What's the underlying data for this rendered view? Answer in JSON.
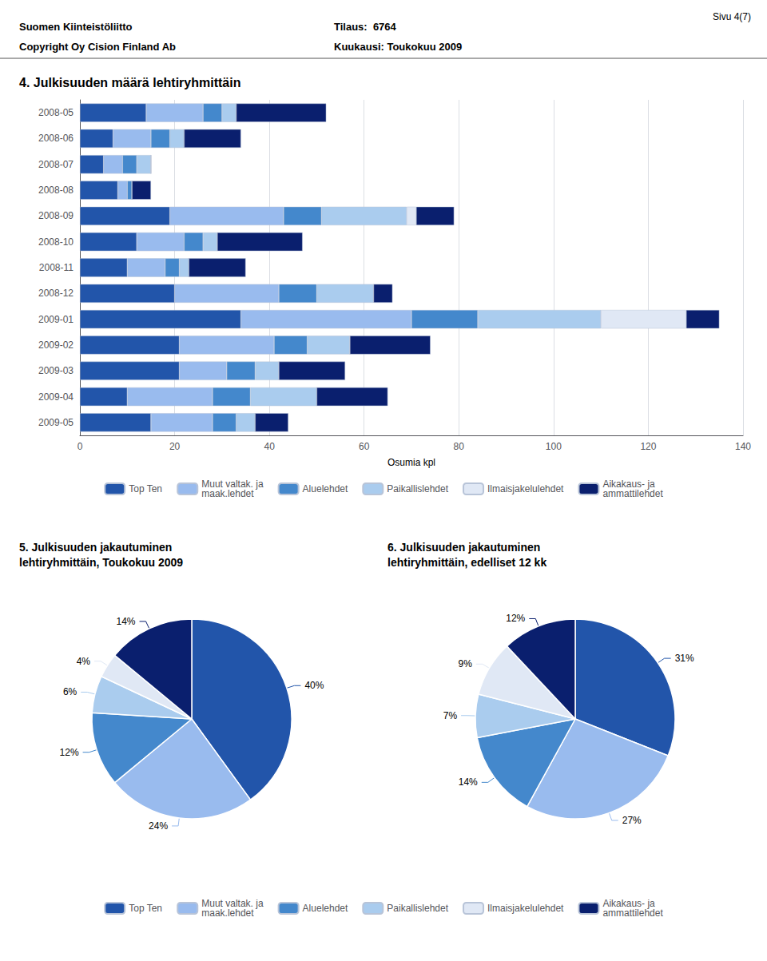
{
  "chart_data": [
    {
      "type": "bar",
      "title": "4. Julkisuuden määrä lehtiryhmittäin",
      "annotations": [
        "Suomen Kiinteistöliitto",
        "Copyright Oy Cision Finland Ab",
        "Tilaus:  6764",
        "Kuukausi: Toukokuu 2009",
        "Sivu 4(7)"
      ],
      "orientation": "horizontal",
      "stacked": true,
      "grid": true,
      "legend": "bottom",
      "categories": [
        "2008-05",
        "2008-06",
        "2008-07",
        "2008-08",
        "2008-09",
        "2008-10",
        "2008-11",
        "2008-12",
        "2009-01",
        "2009-02",
        "2009-03",
        "2009-04",
        "2009-05"
      ],
      "series": [
        {
          "name": "Top Ten",
          "color": "#2255aa",
          "values": [
            14,
            7,
            5,
            8,
            19,
            12,
            10,
            20,
            34,
            21,
            21,
            10,
            15
          ]
        },
        {
          "name": "Muut valtak. ja\nmaak.lehdet",
          "color": "#99bbee",
          "values": [
            12,
            8,
            4,
            2,
            24,
            10,
            8,
            22,
            36,
            20,
            10,
            18,
            13
          ]
        },
        {
          "name": "Aluelehdet",
          "color": "#4488cc",
          "values": [
            4,
            4,
            3,
            1,
            8,
            4,
            3,
            8,
            14,
            7,
            6,
            8,
            5
          ]
        },
        {
          "name": "Paikallislehdet",
          "color": "#aaccee",
          "values": [
            3,
            3,
            3,
            0,
            18,
            3,
            2,
            12,
            26,
            9,
            5,
            14,
            4
          ]
        },
        {
          "name": "Ilmaisjakelulehdet",
          "color": "#e0e8f5",
          "values": [
            0,
            0,
            0,
            0,
            2,
            0,
            0,
            0,
            18,
            0,
            0,
            0,
            0
          ]
        },
        {
          "name": "Aikakaus- ja\nammattilehdet",
          "color": "#0a1f6e",
          "values": [
            19,
            12,
            0,
            4,
            8,
            18,
            12,
            4,
            7,
            17,
            14,
            15,
            7
          ]
        }
      ],
      "xlabel": "Osumia kpl",
      "xlim": [
        0,
        140
      ],
      "xticks": [
        0,
        20,
        40,
        60,
        80,
        100,
        120,
        140
      ]
    },
    {
      "type": "pie",
      "title": "5. Julkisuuden jakautuminen\nlehtiryhmittäin, Toukokuu 2009",
      "categories": [
        "Top Ten",
        "Muut valtak. ja\nmaak.lehdet",
        "Aluelehdet",
        "Paikallislehdet",
        "Ilmaisjakelulehdet",
        "Aikakaus- ja\nammattilehdet"
      ],
      "values": [
        40,
        24,
        12,
        6,
        4,
        14
      ],
      "value_labels": [
        "40%",
        "24%",
        "12%",
        "6%",
        "4%",
        "14%"
      ],
      "colors": [
        "#2255aa",
        "#99bbee",
        "#4488cc",
        "#aaccee",
        "#e0e8f5",
        "#0a1f6e"
      ],
      "data_labels": true,
      "legend": "bottom"
    },
    {
      "type": "pie",
      "title": "6. Julkisuuden jakautuminen\nlehtiryhmittäin, edelliset 12 kk",
      "categories": [
        "Top Ten",
        "Muut valtak. ja\nmaak.lehdet",
        "Aluelehdet",
        "Paikallislehdet",
        "Ilmaisjakelulehdet",
        "Aikakaus- ja\nammattilehdet"
      ],
      "values": [
        31,
        27,
        14,
        7,
        9,
        12
      ],
      "value_labels": [
        "31%",
        "27%",
        "14%",
        "7%",
        "9%",
        "12%"
      ],
      "colors": [
        "#2255aa",
        "#99bbee",
        "#4488cc",
        "#aaccee",
        "#e0e8f5",
        "#0a1f6e"
      ],
      "data_labels": true,
      "legend": "bottom"
    }
  ]
}
